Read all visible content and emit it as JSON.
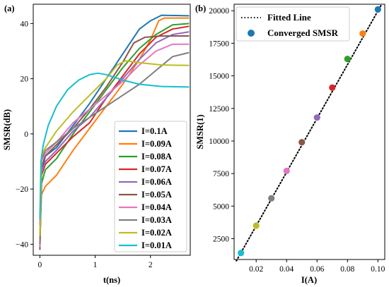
{
  "chart_data": [
    {
      "panel_label": "(a)",
      "type": "line",
      "xlabel": "t(ns)",
      "ylabel": "SMSR(dB)",
      "xlim": [
        -0.12,
        2.72
      ],
      "ylim": [
        -44,
        47
      ],
      "xticks": [
        0,
        1,
        2
      ],
      "yticks": [
        -40,
        -20,
        0,
        20,
        40
      ],
      "grid": false,
      "legend_position": "lower-right",
      "series": [
        {
          "name": "I=0.1A",
          "color": "#1f77b4",
          "points": [
            [
              0,
              -33
            ],
            [
              0.03,
              -14
            ],
            [
              0.1,
              -8
            ],
            [
              0.3,
              -5
            ],
            [
              0.6,
              3
            ],
            [
              0.9,
              11
            ],
            [
              1.2,
              20
            ],
            [
              1.5,
              29
            ],
            [
              1.8,
              38
            ],
            [
              2.0,
              41
            ],
            [
              2.2,
              43
            ],
            [
              2.7,
              42.8
            ]
          ]
        },
        {
          "name": "I=0.09A",
          "color": "#ff7f0e",
          "points": [
            [
              0,
              -38
            ],
            [
              0.03,
              -22
            ],
            [
              0.1,
              -19
            ],
            [
              0.3,
              -15
            ],
            [
              0.6,
              -6
            ],
            [
              0.9,
              2
            ],
            [
              1.2,
              10
            ],
            [
              1.5,
              18
            ],
            [
              1.8,
              27
            ],
            [
              2.0,
              34
            ],
            [
              2.15,
              41
            ],
            [
              2.25,
              42
            ],
            [
              2.7,
              42
            ]
          ]
        },
        {
          "name": "I=0.08A",
          "color": "#2ca02c",
          "points": [
            [
              0,
              -40
            ],
            [
              0.03,
              -18
            ],
            [
              0.1,
              -13
            ],
            [
              0.3,
              -9
            ],
            [
              0.6,
              0
            ],
            [
              0.9,
              8
            ],
            [
              1.2,
              16
            ],
            [
              1.5,
              24
            ],
            [
              1.8,
              31
            ],
            [
              2.1,
              36
            ],
            [
              2.4,
              39.5
            ],
            [
              2.7,
              40
            ]
          ]
        },
        {
          "name": "I=0.07A",
          "color": "#d62728",
          "points": [
            [
              0,
              -41
            ],
            [
              0.03,
              -15
            ],
            [
              0.1,
              -11
            ],
            [
              0.3,
              -7
            ],
            [
              0.6,
              -1
            ],
            [
              0.9,
              4
            ],
            [
              1.2,
              13
            ],
            [
              1.5,
              21
            ],
            [
              1.8,
              29
            ],
            [
              2.1,
              35
            ],
            [
              2.4,
              38
            ],
            [
              2.7,
              39
            ]
          ]
        },
        {
          "name": "I=0.06A",
          "color": "#9467bd",
          "points": [
            [
              0,
              -42
            ],
            [
              0.03,
              -14
            ],
            [
              0.1,
              -10
            ],
            [
              0.3,
              -6
            ],
            [
              0.6,
              1
            ],
            [
              0.9,
              6
            ],
            [
              1.2,
              13
            ],
            [
              1.5,
              20
            ],
            [
              1.8,
              27
            ],
            [
              2.1,
              33
            ],
            [
              2.4,
              36
            ],
            [
              2.7,
              37
            ]
          ]
        },
        {
          "name": "I=0.05A",
          "color": "#8c564b",
          "points": [
            [
              0,
              -42
            ],
            [
              0.03,
              -12
            ],
            [
              0.1,
              -8
            ],
            [
              0.3,
              -4
            ],
            [
              0.6,
              2
            ],
            [
              0.9,
              9
            ],
            [
              1.2,
              17
            ],
            [
              1.5,
              26
            ],
            [
              1.7,
              33
            ],
            [
              1.9,
              35
            ],
            [
              2.2,
              35.5
            ],
            [
              2.7,
              35.5
            ]
          ]
        },
        {
          "name": "I=0.04A",
          "color": "#e377c2",
          "points": [
            [
              0,
              -41
            ],
            [
              0.03,
              -10
            ],
            [
              0.1,
              -7
            ],
            [
              0.3,
              -3
            ],
            [
              0.6,
              4
            ],
            [
              0.9,
              9
            ],
            [
              1.2,
              14
            ],
            [
              1.5,
              19
            ],
            [
              1.8,
              25
            ],
            [
              2.1,
              30
            ],
            [
              2.4,
              32.5
            ],
            [
              2.7,
              32.5
            ]
          ]
        },
        {
          "name": "I=0.03A",
          "color": "#7f7f7f",
          "points": [
            [
              0,
              -40
            ],
            [
              0.03,
              -9
            ],
            [
              0.1,
              -6
            ],
            [
              0.3,
              -3
            ],
            [
              0.6,
              2
            ],
            [
              0.9,
              6
            ],
            [
              1.2,
              10
            ],
            [
              1.5,
              14
            ],
            [
              1.8,
              18
            ],
            [
              2.1,
              23
            ],
            [
              2.4,
              28
            ],
            [
              2.7,
              29.5
            ]
          ]
        },
        {
          "name": "I=0.02A",
          "color": "#bcbd22",
          "points": [
            [
              0,
              -37
            ],
            [
              0.03,
              -8
            ],
            [
              0.1,
              -5
            ],
            [
              0.3,
              1
            ],
            [
              0.6,
              8
            ],
            [
              0.9,
              14
            ],
            [
              1.2,
              20
            ],
            [
              1.4,
              25
            ],
            [
              1.55,
              26.5
            ],
            [
              1.8,
              25.8
            ],
            [
              2.2,
              25
            ],
            [
              2.7,
              24.8
            ]
          ]
        },
        {
          "name": "I=0.01A",
          "color": "#17becf",
          "points": [
            [
              0,
              -31
            ],
            [
              0.02,
              -10
            ],
            [
              0.06,
              -4
            ],
            [
              0.15,
              3
            ],
            [
              0.3,
              10
            ],
            [
              0.5,
              16
            ],
            [
              0.7,
              19.5
            ],
            [
              0.9,
              21.5
            ],
            [
              1.05,
              22
            ],
            [
              1.2,
              21.5
            ],
            [
              1.5,
              19.5
            ],
            [
              1.8,
              18
            ],
            [
              2.2,
              17.2
            ],
            [
              2.7,
              17
            ]
          ]
        }
      ]
    },
    {
      "panel_label": "(b)",
      "type": "scatter",
      "xlabel": "I(A)",
      "ylabel": "SMSR(1)",
      "xlim": [
        0.0055,
        0.1045
      ],
      "ylim": [
        900,
        20500
      ],
      "xticks": [
        "0.02",
        "0.04",
        "0.06",
        "0.08",
        "0.10"
      ],
      "yticks": [
        "2500",
        "5000",
        "7500",
        "10000",
        "12500",
        "15000",
        "17500",
        "20000"
      ],
      "grid": false,
      "legend_position": "top-left",
      "fit_line": {
        "name": "Fitted Line",
        "style": "dotted",
        "color": "#000000",
        "x": [
          0.007,
          0.102
        ],
        "y": [
          800,
          20400
        ]
      },
      "scatter": {
        "name": "Converged SMSR",
        "legend_color": "#1f77b4",
        "x": [
          0.01,
          0.02,
          0.03,
          0.04,
          0.05,
          0.06,
          0.07,
          0.08,
          0.09,
          0.1
        ],
        "y": [
          1400,
          3500,
          5600,
          7700,
          9900,
          11800,
          14100,
          16300,
          18250,
          20100
        ],
        "colors": [
          "#17becf",
          "#bcbd22",
          "#7f7f7f",
          "#e377c2",
          "#8c564b",
          "#9467bd",
          "#d62728",
          "#2ca02c",
          "#ff7f0e",
          "#1f77b4"
        ]
      }
    }
  ]
}
